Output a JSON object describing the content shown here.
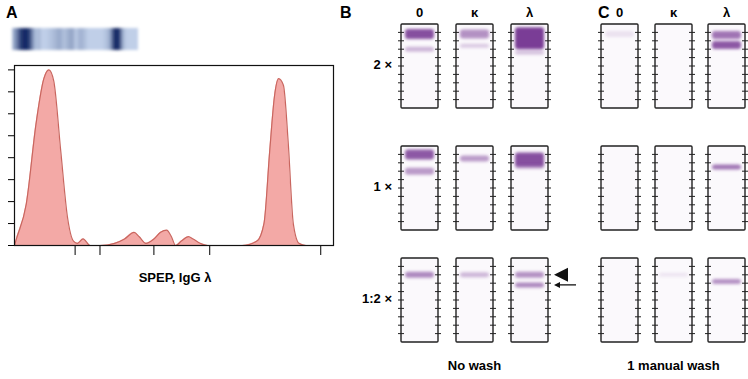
{
  "chart_data": {
    "type": "area",
    "panel": "A",
    "xlabel": "SPEP, IgG λ",
    "x": [
      0,
      0.6,
      3.7,
      6.8,
      9.2,
      10.8,
      12.3,
      14.5,
      16.6,
      18.5,
      19.7,
      21.5,
      23.7,
      26.8,
      31.4,
      34.5,
      37.5,
      39.1,
      41.2,
      43.7,
      45.8,
      47.7,
      49.2,
      50.5,
      52.3,
      54.5,
      56.0,
      58.2,
      60.6,
      65.2,
      71.4,
      76.0,
      78.2,
      80.0,
      81.5,
      82.8,
      84.3,
      85.8,
      87.4,
      89.2,
      91.4,
      100
    ],
    "values": [
      0,
      0.3,
      1.9,
      5.6,
      7.6,
      8.0,
      7.5,
      4.3,
      1.3,
      0.2,
      0.1,
      0.3,
      0,
      0,
      0.1,
      0.3,
      0.6,
      0.4,
      0.1,
      0.3,
      0.6,
      0.7,
      0.4,
      0,
      0.2,
      0.4,
      0.3,
      0.1,
      0,
      0,
      0,
      0.2,
      1.0,
      4.3,
      6.8,
      7.6,
      7.3,
      4.7,
      1.0,
      0.1,
      0,
      0
    ],
    "color": "#f3a9a6",
    "xlim": [
      0,
      100
    ],
    "ylim": [
      0,
      8.2
    ],
    "xticks": [
      19,
      26.8,
      43.7,
      61.2,
      96
    ],
    "yticks": [
      0,
      1,
      2,
      3,
      4,
      5,
      6,
      7,
      8
    ],
    "tick_labels": false
  },
  "immunofixation": {
    "columns": [
      "0",
      "κ",
      "λ"
    ],
    "rows": [
      "2 ×",
      "1 ×",
      "1:2 ×"
    ],
    "panels": [
      {
        "panel": "B",
        "caption": "No wash"
      },
      {
        "panel": "C",
        "caption": "1 manual wash"
      }
    ]
  }
}
